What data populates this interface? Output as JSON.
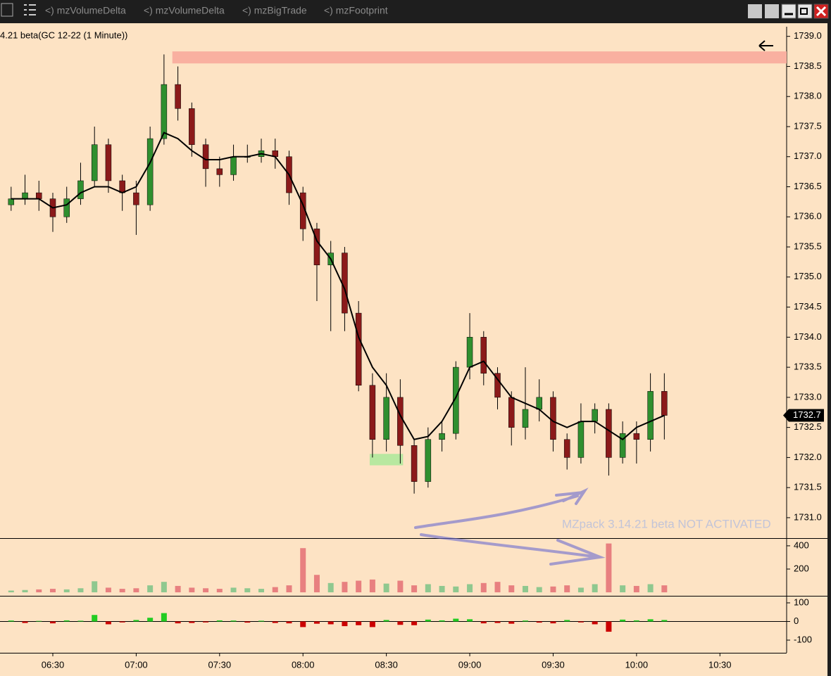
{
  "toolbar": {
    "tabs": [
      "<)  mzVolumeDelta",
      "<)  mzVolumeDelta",
      "<)  mzBigTrade",
      "<)  mzFootprint"
    ]
  },
  "chart_data": [
    {
      "type": "candlestick",
      "title": "4.21 beta(GC 12-22 (1 Minute))",
      "x": [
        "06:15",
        "06:20",
        "06:25",
        "06:30",
        "06:35",
        "06:40",
        "06:45",
        "06:50",
        "06:55",
        "07:00",
        "07:05",
        "07:10",
        "07:15",
        "07:20",
        "07:25",
        "07:30",
        "07:35",
        "07:40",
        "07:45",
        "07:50",
        "07:55",
        "08:00",
        "08:05",
        "08:10",
        "08:15",
        "08:20",
        "08:25",
        "08:30",
        "08:35",
        "08:40",
        "08:45",
        "08:50",
        "08:55",
        "09:00",
        "09:05",
        "09:10",
        "09:15",
        "09:20",
        "09:25",
        "09:30",
        "09:35",
        "09:40",
        "09:45",
        "09:50",
        "09:55",
        "10:00",
        "10:05",
        "10:10"
      ],
      "open": [
        1736.2,
        1736.3,
        1736.4,
        1736.3,
        1736.0,
        1736.3,
        1736.6,
        1737.2,
        1736.6,
        1736.4,
        1736.2,
        1737.3,
        1738.2,
        1737.8,
        1737.2,
        1736.8,
        1736.7,
        1737.0,
        1737.0,
        1737.1,
        1737.0,
        1736.4,
        1735.8,
        1735.2,
        1735.4,
        1734.4,
        1733.2,
        1732.3,
        1733.0,
        1732.2,
        1731.6,
        1732.3,
        1732.4,
        1733.5,
        1734.0,
        1733.4,
        1733.0,
        1732.5,
        1732.8,
        1733.0,
        1732.3,
        1732.0,
        1732.6,
        1732.8,
        1732.0,
        1732.4,
        1732.3,
        1733.1
      ],
      "high": [
        1736.5,
        1736.7,
        1736.6,
        1736.4,
        1736.5,
        1736.9,
        1737.5,
        1737.3,
        1736.7,
        1736.6,
        1737.5,
        1738.7,
        1738.5,
        1737.9,
        1737.3,
        1737.0,
        1737.2,
        1737.2,
        1737.3,
        1737.3,
        1737.1,
        1736.5,
        1735.9,
        1735.6,
        1735.5,
        1734.6,
        1733.4,
        1733.4,
        1733.3,
        1732.3,
        1732.5,
        1732.6,
        1733.6,
        1734.4,
        1734.1,
        1733.5,
        1733.1,
        1733.5,
        1733.3,
        1733.1,
        1732.4,
        1732.9,
        1732.9,
        1732.9,
        1732.6,
        1732.6,
        1733.4,
        1733.4
      ],
      "low": [
        1736.1,
        1736.2,
        1736.1,
        1735.75,
        1735.9,
        1736.2,
        1736.5,
        1736.4,
        1736.1,
        1735.7,
        1736.1,
        1737.2,
        1737.6,
        1737.0,
        1736.5,
        1736.5,
        1736.6,
        1736.9,
        1736.9,
        1736.8,
        1736.2,
        1735.6,
        1734.6,
        1734.1,
        1734.1,
        1733.1,
        1732.0,
        1732.1,
        1731.9,
        1731.4,
        1731.5,
        1732.1,
        1732.3,
        1733.3,
        1733.2,
        1732.8,
        1732.2,
        1732.3,
        1732.6,
        1732.1,
        1731.8,
        1731.9,
        1732.4,
        1731.7,
        1731.9,
        1731.9,
        1732.1,
        1732.3
      ],
      "close": [
        1736.3,
        1736.4,
        1736.3,
        1736.0,
        1736.3,
        1736.6,
        1737.2,
        1736.6,
        1736.4,
        1736.2,
        1737.3,
        1738.2,
        1737.8,
        1737.2,
        1736.8,
        1736.7,
        1737.0,
        1737.0,
        1737.1,
        1737.0,
        1736.4,
        1735.8,
        1735.2,
        1735.4,
        1734.4,
        1733.2,
        1732.3,
        1733.0,
        1732.2,
        1731.6,
        1732.3,
        1732.4,
        1733.5,
        1734.0,
        1733.4,
        1733.0,
        1732.5,
        1732.8,
        1733.0,
        1732.3,
        1732.0,
        1732.6,
        1732.8,
        1732.0,
        1732.4,
        1732.3,
        1733.1,
        1732.7
      ],
      "up_color": "#2f8f2f",
      "down_color": "#8b1a1a",
      "ma": {
        "color": "#000000",
        "values": [
          1736.3,
          1736.3,
          1736.3,
          1736.15,
          1736.2,
          1736.4,
          1736.5,
          1736.5,
          1736.4,
          1736.5,
          1736.9,
          1737.4,
          1737.3,
          1737.1,
          1736.95,
          1736.95,
          1737.0,
          1737.0,
          1737.05,
          1737.0,
          1736.7,
          1736.2,
          1735.6,
          1735.3,
          1734.8,
          1734.0,
          1733.5,
          1733.2,
          1732.7,
          1732.3,
          1732.35,
          1732.6,
          1733.0,
          1733.5,
          1733.6,
          1733.3,
          1733.0,
          1732.9,
          1732.8,
          1732.6,
          1732.5,
          1732.6,
          1732.6,
          1732.45,
          1732.3,
          1732.5,
          1732.6,
          1732.7
        ]
      },
      "zones": [
        {
          "x": [
            "07:13",
            "10:54"
          ],
          "y": [
            1738.55,
            1738.75
          ],
          "color": "#f9b0a0"
        },
        {
          "x": [
            "08:24",
            "08:36"
          ],
          "y": [
            1731.87,
            1732.06
          ],
          "color": "#b8e8a0"
        }
      ],
      "last_price": 1732.7,
      "watermark": "MZpack 3.14.21 beta NOT ACTIVATED",
      "xlim": [
        "06:11",
        "10:54"
      ],
      "xticks": [
        "06:30",
        "07:00",
        "07:30",
        "08:00",
        "08:30",
        "09:00",
        "09:30",
        "10:00",
        "10:30"
      ],
      "ylim": [
        1730.66,
        1739.16
      ],
      "yticks": [
        {
          "value": 1731,
          "label": "1731.0"
        },
        1731.5,
        {
          "value": 1732,
          "label": "1732.0"
        },
        1732.5,
        {
          "value": 1733,
          "label": "1733.0"
        },
        1733.5,
        {
          "value": 1734,
          "label": "1734.0"
        },
        1734.5,
        {
          "value": 1735,
          "label": "1735.0"
        },
        1735.5,
        {
          "value": 1736,
          "label": "1736.0"
        },
        1736.5,
        {
          "value": 1737,
          "label": "1737.0"
        },
        1737.5,
        {
          "value": 1738,
          "label": "1738.0"
        },
        1738.5,
        {
          "value": 1739,
          "label": "1739.0"
        }
      ]
    },
    {
      "type": "volume",
      "values": [
        15,
        20,
        25,
        30,
        25,
        35,
        95,
        40,
        30,
        35,
        60,
        90,
        55,
        40,
        35,
        30,
        40,
        35,
        30,
        45,
        60,
        380,
        150,
        80,
        90,
        100,
        110,
        75,
        100,
        60,
        70,
        55,
        50,
        70,
        80,
        90,
        60,
        55,
        45,
        50,
        60,
        40,
        70,
        420,
        60,
        55,
        70,
        60
      ],
      "up_color": "#8fc88f",
      "down_color": "#e88080",
      "ylim": [
        -30,
        460
      ],
      "yticks": [
        200,
        400
      ]
    },
    {
      "type": "delta",
      "values": [
        5,
        -8,
        3,
        -10,
        6,
        4,
        35,
        -15,
        -5,
        8,
        20,
        45,
        -10,
        -8,
        -5,
        6,
        5,
        -6,
        4,
        -8,
        -10,
        -30,
        -12,
        -15,
        -25,
        -20,
        -30,
        8,
        -18,
        -20,
        10,
        6,
        15,
        12,
        -10,
        -8,
        -12,
        5,
        -6,
        -10,
        8,
        -5,
        -15,
        -55,
        10,
        6,
        12,
        8
      ],
      "up_color": "#22cc22",
      "down_color": "#cc0000",
      "ylim": [
        -168,
        134
      ],
      "yticks": [
        -100,
        0,
        100
      ]
    }
  ]
}
